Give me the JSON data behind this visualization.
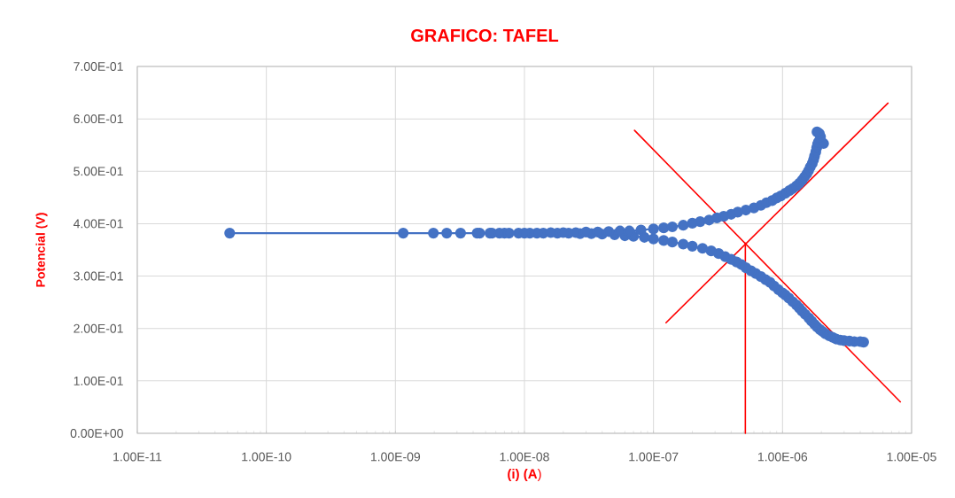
{
  "chart_data": {
    "type": "line",
    "title": "GRAFICO: TAFEL",
    "xlabel": "**(i) (A**)",
    "ylabel": "Potencial (V)",
    "log": "x",
    "grid": true,
    "xlim": [
      1e-11,
      1e-05
    ],
    "ylim": [
      0,
      0.7
    ],
    "xticks": [
      {
        "value": 1e-11,
        "label": "1.00E-11"
      },
      {
        "value": 1e-10,
        "label": "1.00E-10"
      },
      {
        "value": 1e-09,
        "label": "1.00E-09"
      },
      {
        "value": 1e-08,
        "label": "1.00E-08"
      },
      {
        "value": 1e-07,
        "label": "1.00E-07"
      },
      {
        "value": 1e-06,
        "label": "1.00E-06"
      },
      {
        "value": 1e-05,
        "label": "1.00E-05"
      }
    ],
    "yticks": [
      {
        "value": 0,
        "label": "0.00E+00"
      },
      {
        "value": 0.1,
        "label": "1.00E-01"
      },
      {
        "value": 0.2,
        "label": "2.00E-01"
      },
      {
        "value": 0.3,
        "label": "3.00E-01"
      },
      {
        "value": 0.4,
        "label": "4.00E-01"
      },
      {
        "value": 0.5,
        "label": "5.00E-01"
      },
      {
        "value": 0.6,
        "label": "6.00E-01"
      },
      {
        "value": 0.7,
        "label": "7.00E-01"
      }
    ],
    "series": [
      {
        "color": "#4472c4",
        "marker": "circle",
        "x": [
          4.25e-06,
          4e-06,
          3.6e-06,
          3.3e-06,
          3e-06,
          2.8e-06,
          2.6e-06,
          2.45e-06,
          2.3e-06,
          2.15e-06,
          2.05e-06,
          1.95e-06,
          1.85e-06,
          1.77e-06,
          1.68e-06,
          1.6e-06,
          1.5e-06,
          1.42e-06,
          1.35e-06,
          1.28e-06,
          1.2e-06,
          1.12e-06,
          1.05e-06,
          1e-06,
          9.3e-07,
          8.6e-07,
          8e-07,
          7.4e-07,
          6.8e-07,
          6.2e-07,
          5.7e-07,
          5.2e-07,
          4.8e-07,
          4.4e-07,
          4e-07,
          3.6e-07,
          3.2e-07,
          2.8e-07,
          2.4e-07,
          2e-07,
          1.7e-07,
          1.4e-07,
          1.2e-07,
          1e-07,
          8.5e-08,
          7e-08,
          6e-08,
          5e-08,
          4e-08,
          3.3e-08,
          2.7e-08,
          2.2e-08,
          1.8e-08,
          1.4e-08,
          1.1e-08,
          9e-09,
          7e-09,
          5.6e-09,
          4.5e-09,
          2.5e-09,
          1.15e-09,
          5.2e-11,
          1.97e-09,
          3.2e-09,
          4.3e-09,
          5.4e-09,
          6.4e-09,
          7.6e-09,
          1e-08,
          1.25e-08,
          1.6e-08,
          2e-08,
          2.5e-08,
          3e-08,
          3.7e-08,
          4.5e-08,
          5.5e-08,
          6.5e-08,
          8e-08,
          1e-07,
          1.2e-07,
          1.4e-07,
          1.7e-07,
          2e-07,
          2.3e-07,
          2.7e-07,
          3.1e-07,
          3.5e-07,
          4e-07,
          4.5e-07,
          5.2e-07,
          6e-07,
          6.8e-07,
          7.5e-07,
          8.3e-07,
          9e-07,
          9.7e-07,
          1.05e-06,
          1.13e-06,
          1.2e-06,
          1.28e-06,
          1.35e-06,
          1.42e-06,
          1.48e-06,
          1.54e-06,
          1.59e-06,
          1.64e-06,
          1.7e-06,
          1.74e-06,
          1.77e-06,
          1.81e-06,
          1.84e-06,
          1.87e-06,
          1.9e-06,
          2e-06,
          2.08e-06,
          1.97e-06,
          1.93e-06,
          1.85e-06
        ],
        "values": [
          0.174,
          0.175,
          0.175,
          0.176,
          0.177,
          0.178,
          0.18,
          0.183,
          0.186,
          0.19,
          0.194,
          0.198,
          0.203,
          0.208,
          0.214,
          0.22,
          0.227,
          0.233,
          0.239,
          0.245,
          0.251,
          0.258,
          0.264,
          0.268,
          0.274,
          0.281,
          0.288,
          0.293,
          0.299,
          0.305,
          0.31,
          0.316,
          0.322,
          0.327,
          0.332,
          0.337,
          0.343,
          0.348,
          0.353,
          0.357,
          0.361,
          0.365,
          0.368,
          0.371,
          0.374,
          0.376,
          0.377,
          0.379,
          0.38,
          0.381,
          0.381,
          0.382,
          0.382,
          0.382,
          0.382,
          0.382,
          0.382,
          0.382,
          0.382,
          0.382,
          0.382,
          0.382,
          0.382,
          0.382,
          0.382,
          0.382,
          0.382,
          0.382,
          0.382,
          0.382,
          0.383,
          0.383,
          0.383,
          0.384,
          0.384,
          0.385,
          0.386,
          0.386,
          0.388,
          0.39,
          0.392,
          0.394,
          0.397,
          0.401,
          0.404,
          0.407,
          0.411,
          0.414,
          0.418,
          0.422,
          0.426,
          0.43,
          0.435,
          0.44,
          0.444,
          0.449,
          0.453,
          0.458,
          0.463,
          0.467,
          0.472,
          0.477,
          0.483,
          0.489,
          0.495,
          0.501,
          0.508,
          0.515,
          0.522,
          0.529,
          0.537,
          0.545,
          0.552,
          0.556,
          0.556,
          0.553,
          0.566,
          0.572,
          0.575
        ]
      },
      {
        "color": "#ff0000",
        "marker": "none",
        "x": [
          7.13e-08,
          8.18e-06
        ],
        "values": [
          0.578,
          0.06
        ]
      },
      {
        "color": "#ff0000",
        "marker": "none",
        "x": [
          1.25e-07,
          6.56e-06
        ],
        "values": [
          0.211,
          0.63
        ]
      },
      {
        "color": "#ff0000",
        "marker": "none",
        "x": [
          5.15e-07,
          5.15e-07
        ],
        "values": [
          0.363,
          0
        ]
      }
    ]
  }
}
